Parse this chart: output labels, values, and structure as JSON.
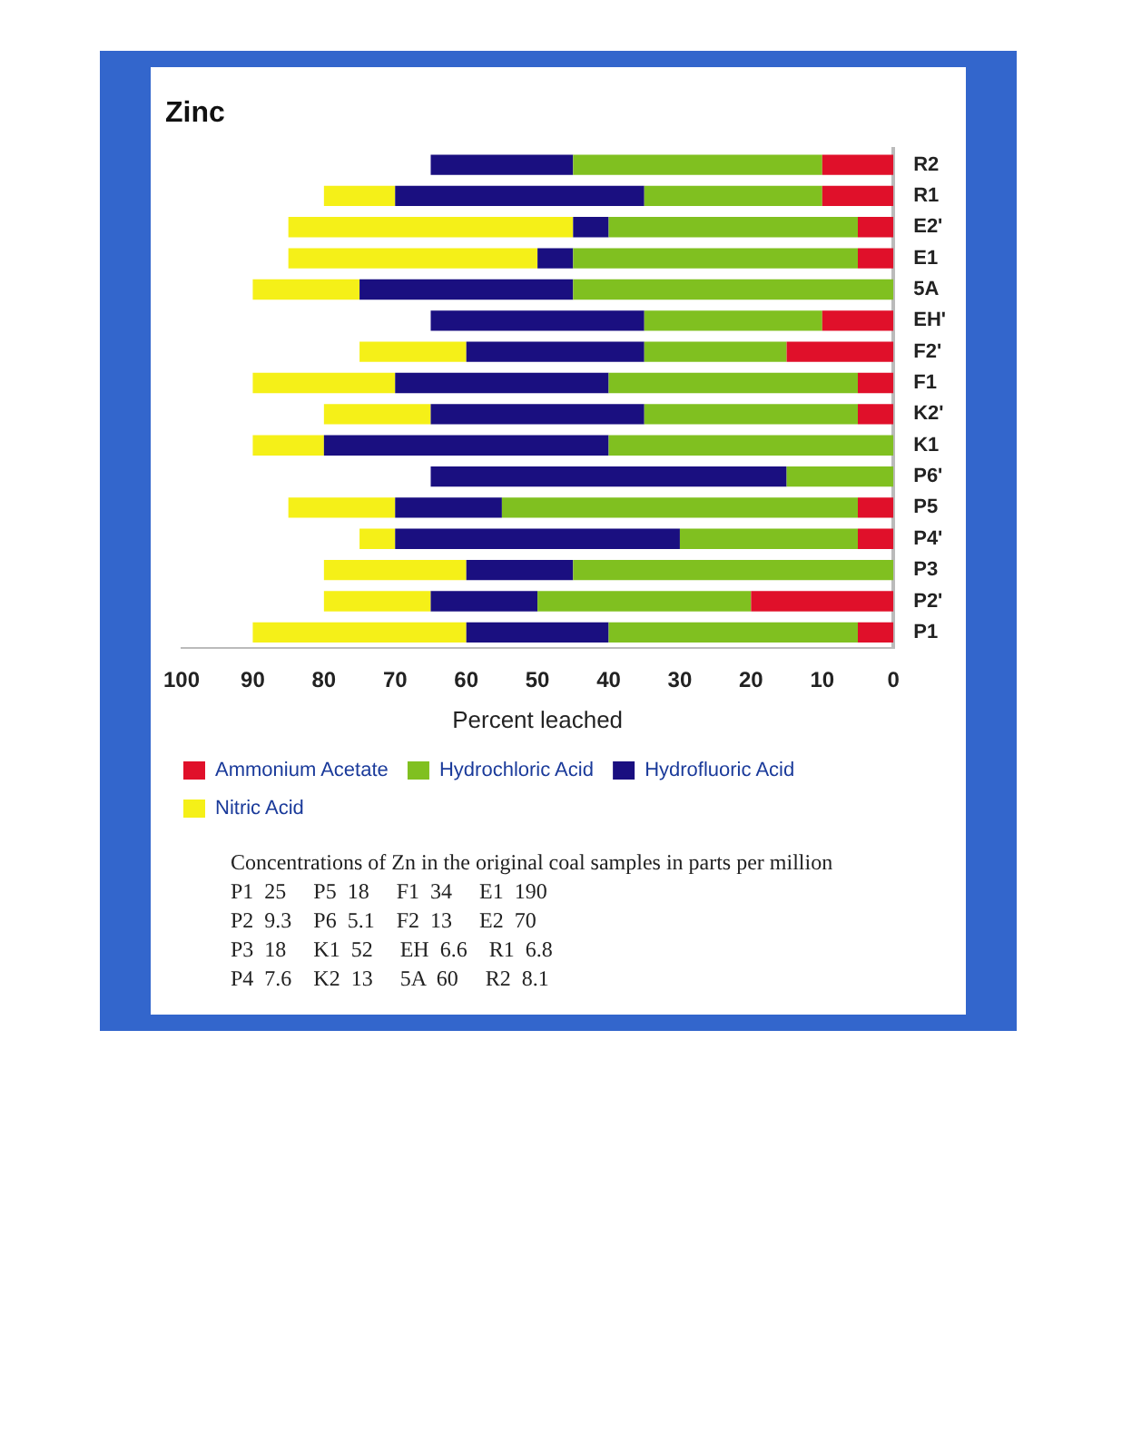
{
  "chart_data": {
    "type": "bar",
    "orientation": "horizontal",
    "stacked": true,
    "title": "Zinc",
    "xlabel": "Percent leached",
    "categories": [
      "R2",
      "R1",
      "E2'",
      "E1",
      "5A",
      "EH'",
      "F2'",
      "F1",
      "K2'",
      "K1",
      "P6'",
      "P5",
      "P4'",
      "P3",
      "P2'",
      "P1"
    ],
    "series": [
      {
        "name": "Ammonium Acetate",
        "color": "#e0102a",
        "values": [
          10,
          10,
          5,
          5,
          0,
          10,
          15,
          5,
          5,
          0,
          0,
          5,
          5,
          0,
          20,
          5
        ]
      },
      {
        "name": "Hydrochloric Acid",
        "color": "#80c020",
        "values": [
          35,
          25,
          35,
          40,
          45,
          25,
          20,
          35,
          30,
          40,
          15,
          50,
          25,
          45,
          30,
          35
        ]
      },
      {
        "name": "Hydrofluoric Acid",
        "color": "#1a0f80",
        "values": [
          20,
          35,
          5,
          5,
          30,
          30,
          25,
          30,
          30,
          40,
          50,
          15,
          40,
          15,
          15,
          20
        ]
      },
      {
        "name": "Nitric Acid",
        "color": "#f5f018",
        "values": [
          0,
          10,
          40,
          35,
          15,
          0,
          15,
          20,
          15,
          10,
          0,
          15,
          5,
          20,
          15,
          30
        ]
      }
    ],
    "xlim": [
      100,
      0
    ],
    "xticks": [
      100,
      90,
      80,
      70,
      60,
      50,
      40,
      30,
      20,
      10,
      0
    ],
    "grid": false,
    "legend": "bottom left",
    "annotations": [
      "Concentrations of Zn in the original coal samples in parts per million",
      "P1  25     P5  18     F1  34     E1  190",
      "P2  9.3    P6  5.1    F2  13     E2  70",
      "P3  18     K1  52     EH  6.6    R1  6.8",
      "P4  7.6    K2  13     5A  60     R2  8.1"
    ]
  }
}
